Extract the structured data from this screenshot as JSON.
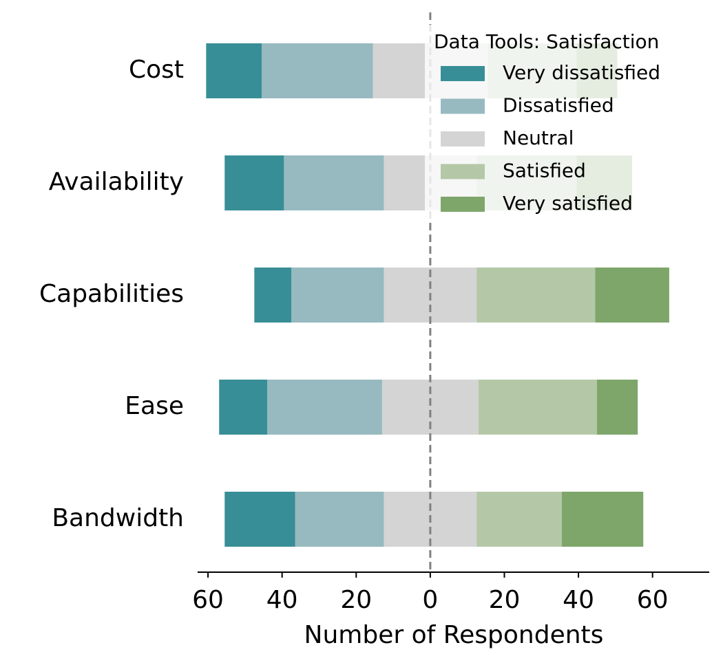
{
  "chart_data": {
    "type": "diverging_bar",
    "xlabel": "Number of Respondents",
    "legend_title": "Data Tools: Satisfaction",
    "legend": "upper right",
    "categories": [
      "Cost",
      "Availability",
      "Capabilities",
      "Ease",
      "Bandwidth"
    ],
    "series": [
      {
        "name": "Very dissatisfied",
        "color": "#388e96",
        "values": [
          15,
          16,
          10,
          13,
          19
        ]
      },
      {
        "name": "Dissatisfied",
        "color": "#96babf",
        "values": [
          30,
          27,
          25,
          31,
          24
        ]
      },
      {
        "name": "Neutral",
        "color": "#d4d4d4",
        "values": [
          31,
          25,
          25,
          26,
          25
        ]
      },
      {
        "name": "Satisfied",
        "color": "#b4c8a8",
        "values": [
          24,
          27,
          32,
          32,
          23
        ]
      },
      {
        "name": "Very satisfied",
        "color": "#7ea66a",
        "values": [
          11,
          15,
          20,
          11,
          22
        ]
      }
    ],
    "xlim": [
      -62.8,
      75.3
    ],
    "xticks": [
      {
        "value": -60,
        "label": "60"
      },
      {
        "value": -40,
        "label": "40"
      },
      {
        "value": -20,
        "label": "20"
      },
      0,
      20,
      40,
      60
    ]
  }
}
